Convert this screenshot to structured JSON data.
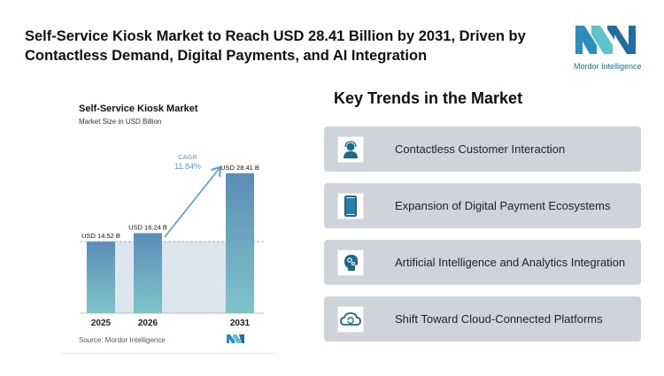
{
  "header": {
    "title": "Self-Service Kiosk Market to Reach USD 28.41 Billion by 2031, Driven by Contactless Demand, Digital Payments, and AI Integration",
    "logo_text": "Mordor Intelligence"
  },
  "chart_data": {
    "type": "bar",
    "title": "Self-Service Kiosk Market",
    "subtitle": "Market Size in USD Billion",
    "categories": [
      "2025",
      "2026",
      "2031"
    ],
    "values": [
      14.52,
      16.24,
      28.41
    ],
    "data_labels": [
      "USD 14.52 B",
      "USD 16.24 B",
      "USD 28.41 B"
    ],
    "annotation": {
      "label": "CAGR",
      "value": "11.84%"
    },
    "source": "Source:  Mordor Intelligence",
    "colors": {
      "bar_top": "#5b8db8",
      "bar_bottom": "#7fc4c9",
      "shade": "#dde6ee",
      "accent": "#5b9bc8"
    }
  },
  "trends": {
    "title": "Key Trends in the Market",
    "items": [
      {
        "label": "Contactless Customer Interaction",
        "icon": "customer-support-icon"
      },
      {
        "label": "Expansion of Digital Payment Ecosystems",
        "icon": "smartphone-icon"
      },
      {
        "label": "Artificial Intelligence and Analytics Integration",
        "icon": "ai-head-gears-icon"
      },
      {
        "label": "Shift Toward Cloud-Connected Platforms",
        "icon": "cloud-sync-icon"
      }
    ],
    "icon_color": "#1b6a8e"
  }
}
